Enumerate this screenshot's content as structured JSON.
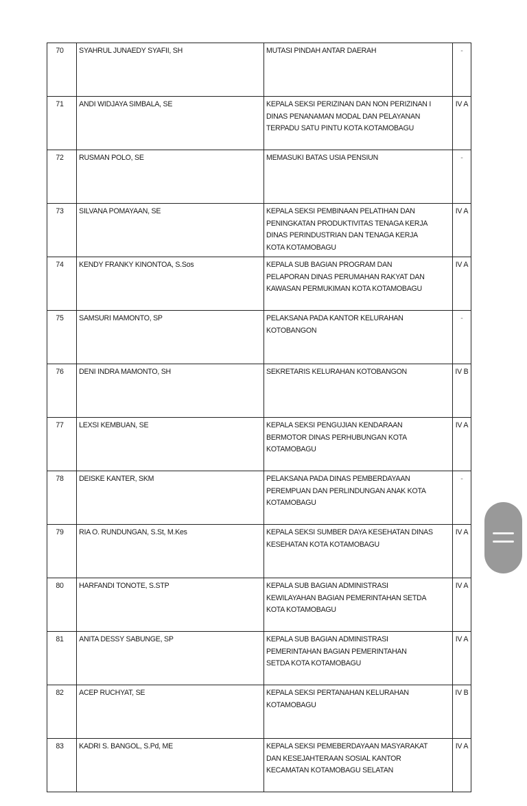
{
  "table": {
    "rows": [
      {
        "no": "70",
        "name": "SYAHRUL JUNAEDY SYAFII, SH",
        "position": [
          "MUTASI PINDAH ANTAR DAERAH"
        ],
        "grade": "-"
      },
      {
        "no": "71",
        "name": "ANDI WIDJAYA SIMBALA, SE",
        "position": [
          "KEPALA SEKSI PERIZINAN DAN NON PERIZINAN I",
          "DINAS PENANAMAN MODAL DAN PELAYANAN",
          "TERPADU SATU PINTU KOTA KOTAMOBAGU"
        ],
        "grade": "IV A"
      },
      {
        "no": "72",
        "name": "RUSMAN POLO, SE",
        "position": [
          "MEMASUKI BATAS USIA PENSIUN"
        ],
        "grade": "-"
      },
      {
        "no": "73",
        "name": "SILVANA POMAYAAN, SE",
        "position": [
          "KEPALA SEKSI PEMBINAAN PELATIHAN DAN",
          "PENINGKATAN PRODUKTIVITAS TENAGA KERJA",
          "DINAS PERINDUSTRIAN DAN TENAGA KERJA",
          "KOTA KOTAMOBAGU"
        ],
        "grade": "IV A"
      },
      {
        "no": "74",
        "name": "KENDY FRANKY KINONTOA, S.Sos",
        "position": [
          "KEPALA  SUB BAGIAN PROGRAM DAN",
          "PELAPORAN DINAS PERUMAHAN RAKYAT DAN",
          "KAWASAN PERMUKIMAN KOTA KOTAMOBAGU"
        ],
        "grade": "IV A"
      },
      {
        "no": "75",
        "name": "SAMSURI MAMONTO, SP",
        "position": [
          "PELAKSANA PADA KANTOR KELURAHAN",
          "KOTOBANGON"
        ],
        "grade": "-"
      },
      {
        "no": "76",
        "name": "DENI INDRA MAMONTO, SH",
        "position": [
          "SEKRETARIS KELURAHAN KOTOBANGON"
        ],
        "grade": "IV B"
      },
      {
        "no": "77",
        "name": "LEXSI KEMBUAN, SE",
        "position": [
          "KEPALA SEKSI PENGUJIAN KENDARAAN",
          "BERMOTOR DINAS PERHUBUNGAN KOTA",
          "KOTAMOBAGU"
        ],
        "grade": "IV A"
      },
      {
        "no": "78",
        "name": "DEISKE KANTER, SKM",
        "position": [
          "PELAKSANA PADA DINAS PEMBERDAYAAN",
          "PEREMPUAN DAN PERLINDUNGAN ANAK KOTA",
          "KOTAMOBAGU"
        ],
        "grade": "-"
      },
      {
        "no": "79",
        "name": "RIA O. RUNDUNGAN, S.St, M.Kes",
        "position": [
          "KEPALA SEKSI SUMBER DAYA KESEHATAN DINAS",
          "KESEHATAN KOTA KOTAMOBAGU"
        ],
        "grade": "IV A"
      },
      {
        "no": "80",
        "name": "HARFANDI TONOTE, S.STP",
        "position": [
          "KEPALA SUB BAGIAN ADMINISTRASI",
          "KEWILAYAHAN BAGIAN PEMERINTAHAN  SETDA",
          "KOTA KOTAMOBAGU"
        ],
        "grade": "IV A"
      },
      {
        "no": "81",
        "name": "ANITA DESSY SABUNGE, SP",
        "position": [
          "KEPALA SUB BAGIAN ADMINISTRASI",
          "PEMERINTAHAN BAGIAN PEMERINTAHAN",
          "SETDA KOTA KOTAMOBAGU"
        ],
        "grade": "IV A"
      },
      {
        "no": "82",
        "name": "ACEP RUCHYAT, SE",
        "position": [
          "KEPALA SEKSI PERTANAHAN KELURAHAN",
          "KOTAMOBAGU"
        ],
        "grade": "IV B"
      },
      {
        "no": "83",
        "name": "KADRI S. BANGOL, S.Pd, ME",
        "position": [
          "KEPALA SEKSI PEMEBERDAYAAN MASYARAKAT",
          "DAN KESEJAHTERAAN SOSIAL KANTOR",
          "KECAMATAN KOTAMOBAGU SELATAN"
        ],
        "grade": "IV A"
      }
    ]
  },
  "scroll_handle": {
    "icon": "drag-handle-icon",
    "color": "#8e8e8e"
  }
}
